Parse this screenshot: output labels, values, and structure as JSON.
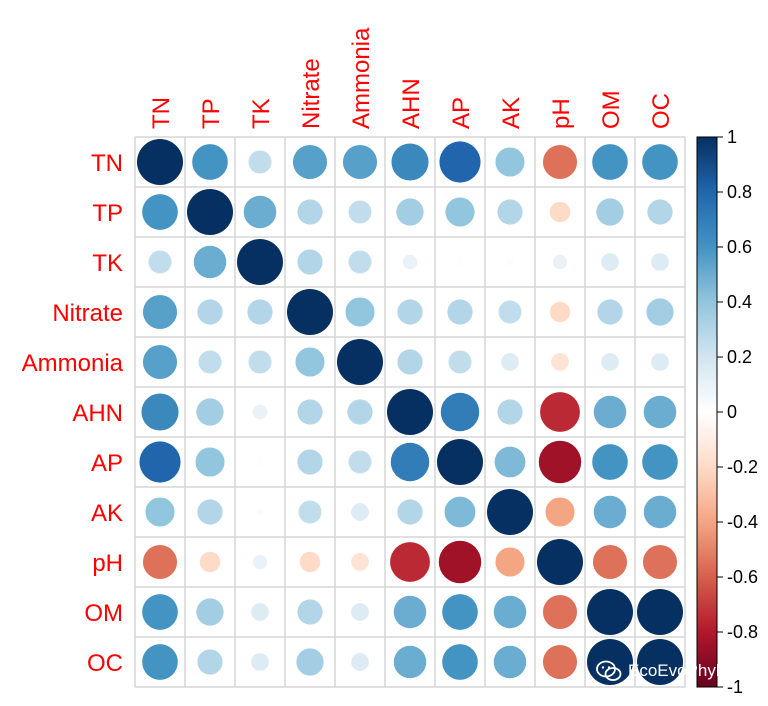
{
  "chart_data": {
    "type": "heatmap",
    "style": "correlation-circles",
    "title": "",
    "variables": [
      "TN",
      "TP",
      "TK",
      "Nitrate",
      "Ammonia",
      "AHN",
      "AP",
      "AK",
      "pH",
      "OM",
      "OC"
    ],
    "matrix": [
      [
        1.0,
        0.6,
        0.25,
        0.55,
        0.55,
        0.65,
        0.8,
        0.4,
        -0.55,
        0.6,
        0.6
      ],
      [
        0.6,
        1.0,
        0.5,
        0.3,
        0.25,
        0.35,
        0.4,
        0.3,
        -0.2,
        0.35,
        0.3
      ],
      [
        0.25,
        0.5,
        1.0,
        0.3,
        0.25,
        0.1,
        0.02,
        0.02,
        0.1,
        0.15,
        0.15
      ],
      [
        0.55,
        0.3,
        0.3,
        1.0,
        0.4,
        0.3,
        0.3,
        0.25,
        -0.2,
        0.3,
        0.35
      ],
      [
        0.55,
        0.25,
        0.25,
        0.4,
        1.0,
        0.3,
        0.25,
        0.15,
        -0.15,
        0.15,
        0.15
      ],
      [
        0.65,
        0.35,
        0.1,
        0.3,
        0.3,
        1.0,
        0.7,
        0.3,
        -0.75,
        0.5,
        0.5
      ],
      [
        0.8,
        0.4,
        0.02,
        0.3,
        0.25,
        0.7,
        1.0,
        0.45,
        -0.85,
        0.6,
        0.6
      ],
      [
        0.4,
        0.3,
        0.02,
        0.25,
        0.15,
        0.3,
        0.45,
        1.0,
        -0.4,
        0.5,
        0.5
      ],
      [
        -0.55,
        -0.2,
        0.1,
        -0.2,
        -0.15,
        -0.75,
        -0.85,
        -0.4,
        1.0,
        -0.55,
        -0.55
      ],
      [
        0.6,
        0.35,
        0.15,
        0.3,
        0.15,
        0.5,
        0.6,
        0.5,
        -0.55,
        1.0,
        1.0
      ],
      [
        0.6,
        0.3,
        0.15,
        0.35,
        0.15,
        0.5,
        0.6,
        0.5,
        -0.55,
        1.0,
        1.0
      ]
    ],
    "colorbar": {
      "range": [
        -1,
        1
      ],
      "ticks": [
        1,
        0.8,
        0.6,
        0.4,
        0.2,
        0,
        -0.2,
        -0.4,
        -0.6,
        -0.8,
        -1
      ],
      "tick_labels": [
        "1",
        "0.8",
        "0.6",
        "0.4",
        "0.2",
        "0",
        "-0.2",
        "-0.4",
        "-0.6",
        "-0.8",
        "-1"
      ]
    },
    "colors": {
      "negative_end": "#67001f",
      "mid": "#ffffff",
      "positive_end": "#053061",
      "label": "#ff0000",
      "grid": "#d6d6d6"
    }
  },
  "watermark": {
    "text": "EcoEvoPhylo",
    "icon": "wechat-icon"
  }
}
